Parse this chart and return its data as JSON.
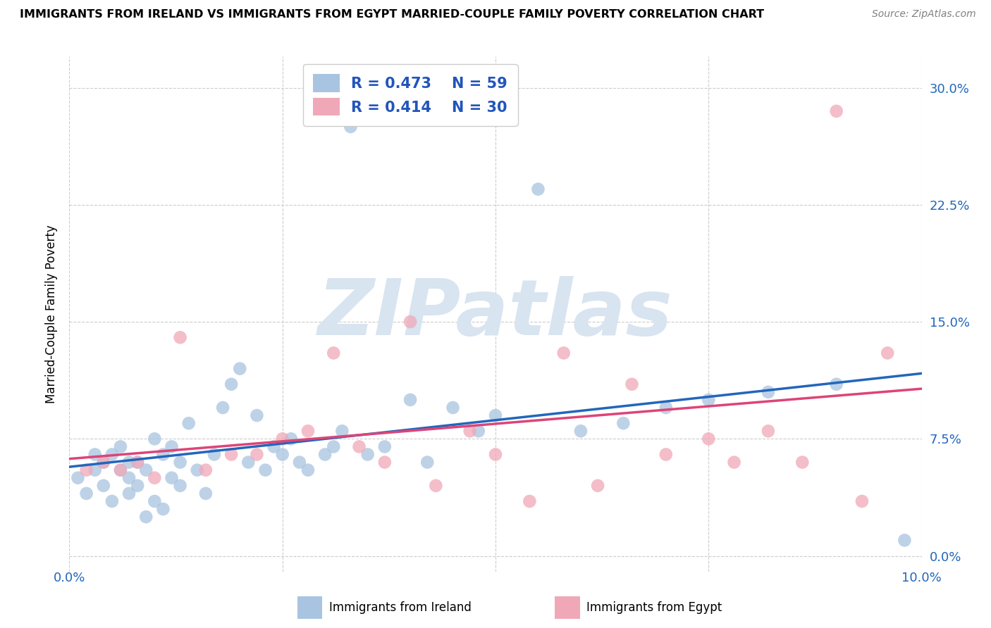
{
  "title": "IMMIGRANTS FROM IRELAND VS IMMIGRANTS FROM EGYPT MARRIED-COUPLE FAMILY POVERTY CORRELATION CHART",
  "source": "Source: ZipAtlas.com",
  "ylabel": "Married-Couple Family Poverty",
  "ytick_values": [
    0.0,
    0.075,
    0.15,
    0.225,
    0.3
  ],
  "xlim": [
    0.0,
    0.1
  ],
  "ylim": [
    -0.01,
    0.32
  ],
  "ireland_R": 0.473,
  "ireland_N": 59,
  "egypt_R": 0.414,
  "egypt_N": 30,
  "ireland_color": "#a8c4e0",
  "ireland_line_color": "#2266bb",
  "egypt_color": "#f0a8b8",
  "egypt_line_color": "#dd4477",
  "background_color": "#ffffff",
  "grid_color": "#cccccc",
  "watermark_color": "#d8e4f0",
  "legend_text_color": "#2255bb",
  "ireland_scatter_x": [
    0.001,
    0.002,
    0.003,
    0.003,
    0.004,
    0.004,
    0.005,
    0.005,
    0.006,
    0.006,
    0.007,
    0.007,
    0.007,
    0.008,
    0.008,
    0.009,
    0.009,
    0.01,
    0.01,
    0.011,
    0.011,
    0.012,
    0.012,
    0.013,
    0.013,
    0.014,
    0.015,
    0.016,
    0.017,
    0.018,
    0.019,
    0.02,
    0.021,
    0.022,
    0.023,
    0.024,
    0.025,
    0.026,
    0.027,
    0.028,
    0.03,
    0.031,
    0.032,
    0.033,
    0.035,
    0.037,
    0.04,
    0.042,
    0.045,
    0.048,
    0.05,
    0.055,
    0.06,
    0.065,
    0.07,
    0.075,
    0.082,
    0.09,
    0.098
  ],
  "ireland_scatter_y": [
    0.05,
    0.04,
    0.055,
    0.065,
    0.045,
    0.06,
    0.035,
    0.065,
    0.055,
    0.07,
    0.04,
    0.05,
    0.06,
    0.045,
    0.06,
    0.025,
    0.055,
    0.035,
    0.075,
    0.03,
    0.065,
    0.05,
    0.07,
    0.045,
    0.06,
    0.085,
    0.055,
    0.04,
    0.065,
    0.095,
    0.11,
    0.12,
    0.06,
    0.09,
    0.055,
    0.07,
    0.065,
    0.075,
    0.06,
    0.055,
    0.065,
    0.07,
    0.08,
    0.275,
    0.065,
    0.07,
    0.1,
    0.06,
    0.095,
    0.08,
    0.09,
    0.235,
    0.08,
    0.085,
    0.095,
    0.1,
    0.105,
    0.11,
    0.01
  ],
  "egypt_scatter_x": [
    0.002,
    0.004,
    0.006,
    0.008,
    0.01,
    0.013,
    0.016,
    0.019,
    0.022,
    0.025,
    0.028,
    0.031,
    0.034,
    0.037,
    0.04,
    0.043,
    0.047,
    0.05,
    0.054,
    0.058,
    0.062,
    0.066,
    0.07,
    0.075,
    0.078,
    0.082,
    0.086,
    0.09,
    0.093,
    0.096
  ],
  "egypt_scatter_y": [
    0.055,
    0.06,
    0.055,
    0.06,
    0.05,
    0.14,
    0.055,
    0.065,
    0.065,
    0.075,
    0.08,
    0.13,
    0.07,
    0.06,
    0.15,
    0.045,
    0.08,
    0.065,
    0.035,
    0.13,
    0.045,
    0.11,
    0.065,
    0.075,
    0.06,
    0.08,
    0.06,
    0.285,
    0.035,
    0.13
  ]
}
